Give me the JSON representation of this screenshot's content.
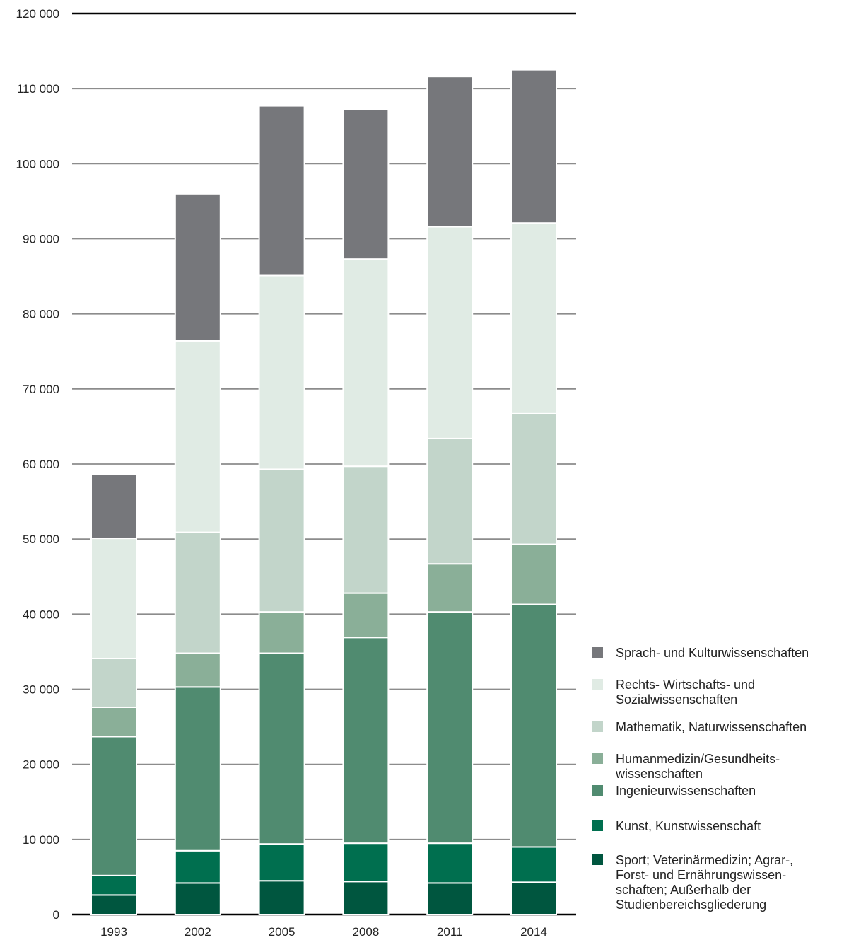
{
  "chart_data": {
    "type": "bar",
    "stacked": true,
    "categories": [
      "1993",
      "2002",
      "2005",
      "2008",
      "2011",
      "2014"
    ],
    "ylim": [
      0,
      120000
    ],
    "yticks": [
      0,
      10000,
      20000,
      30000,
      40000,
      50000,
      60000,
      70000,
      80000,
      90000,
      100000,
      110000,
      120000
    ],
    "ytick_labels": [
      "0",
      "10 000",
      "20 000",
      "30 000",
      "40 000",
      "50 000",
      "60 000",
      "70 000",
      "80 000",
      "90 000",
      "100 000",
      "110 000",
      "120 000"
    ],
    "grid": true,
    "legend_position": "bottom-right",
    "series": [
      {
        "name": "Sport; Veterinärmedizin; Agrar-,\nForst- und Ernährungswissen-\nschaften; Außerhalb der\nStudienbereichsgliederung",
        "color": "#00563f",
        "values": [
          2600,
          4200,
          4500,
          4400,
          4200,
          4300
        ]
      },
      {
        "name": "Kunst, Kunstwissenschaft",
        "color": "#006f4f",
        "values": [
          2600,
          4300,
          4900,
          5100,
          5300,
          4700
        ]
      },
      {
        "name": "Ingenieurwissenschaften",
        "color": "#508b70",
        "values": [
          18500,
          21800,
          25400,
          27400,
          30800,
          32300
        ]
      },
      {
        "name": "Humanmedizin/Gesundheits-\nwissenschaften",
        "color": "#8aaf98",
        "values": [
          3900,
          4500,
          5500,
          5900,
          6400,
          8000
        ]
      },
      {
        "name": "Mathematik, Naturwissenschaften",
        "color": "#c2d5ca",
        "values": [
          6500,
          16100,
          19000,
          16900,
          16700,
          17400
        ]
      },
      {
        "name": "Rechts- Wirtschafts- und\nSozialwissenschaften",
        "color": "#e0ebe4",
        "values": [
          16000,
          25500,
          25800,
          27600,
          28200,
          25400
        ]
      },
      {
        "name": "Sprach- und Kulturwissenschaften",
        "color": "#76777b",
        "values": [
          8500,
          19600,
          22600,
          19900,
          20000,
          20400
        ]
      }
    ]
  }
}
